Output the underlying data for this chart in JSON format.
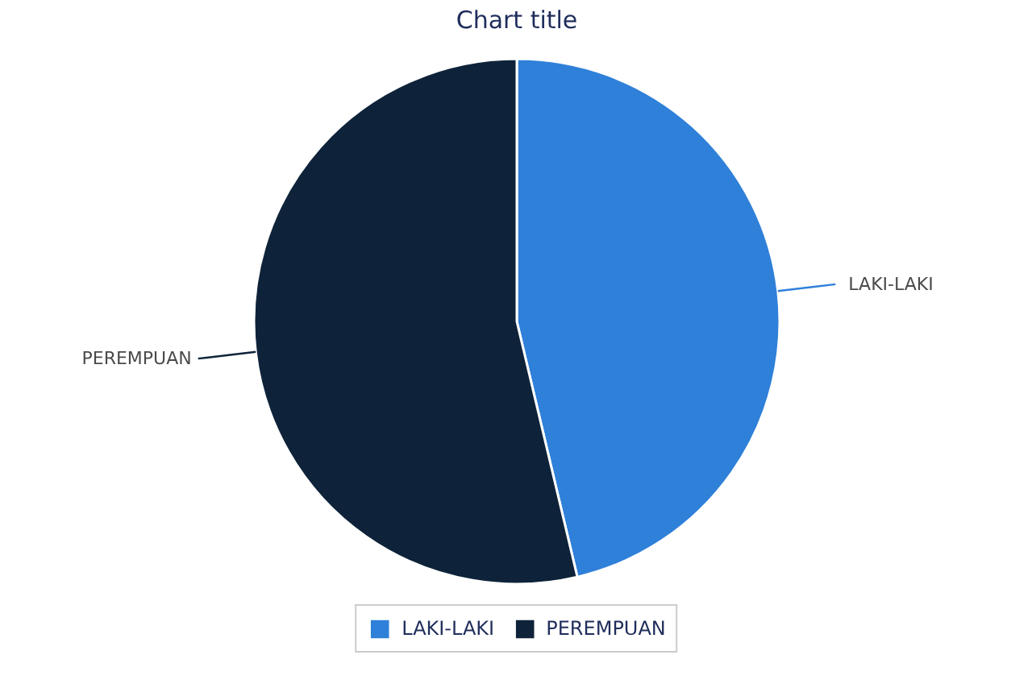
{
  "chart_data": {
    "type": "pie",
    "title": "Chart title",
    "categories": [
      "LAKI-LAKI",
      "PEREMPUAN"
    ],
    "values": [
      46.3,
      53.7
    ],
    "colors": [
      "#2f80d9",
      "#0e2339"
    ],
    "legend": "bottom"
  }
}
